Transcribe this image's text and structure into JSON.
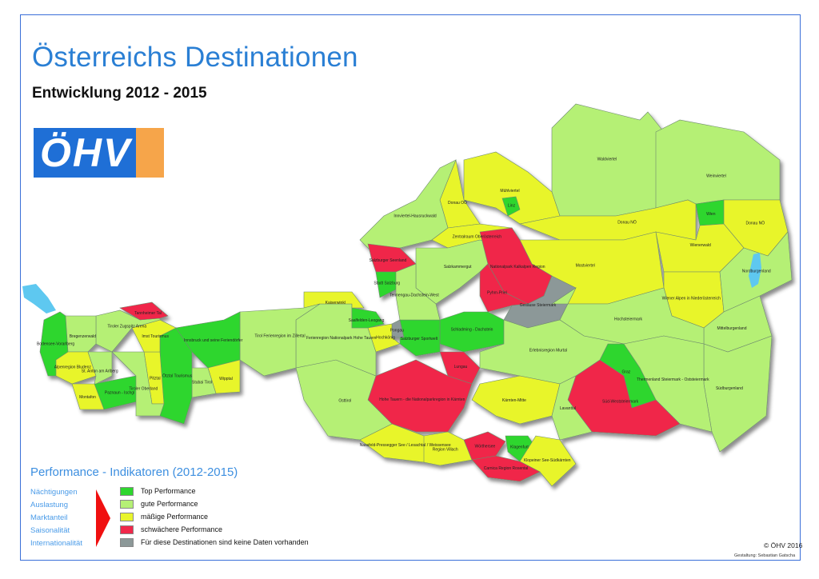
{
  "header": {
    "title": "Österreichs Destinationen",
    "subtitle": "Entwicklung 2012 - 2015",
    "logo_text": "ÖHV"
  },
  "colors": {
    "top": "#2ed62e",
    "gute": "#b5f075",
    "maessig": "#e8f52c",
    "schwach": "#f0284a",
    "keine": "#8c9898",
    "title": "#2a7fd4",
    "lake": "#5ec8f0"
  },
  "legend": {
    "title": "Performance - Indikatoren (2012-2015)",
    "indicators": [
      "Nächtigungen",
      "Auslastung",
      "Marktanteil",
      "Saisonalität",
      "Internationalität"
    ],
    "categories": [
      {
        "key": "top",
        "label": "Top Performance"
      },
      {
        "key": "gute",
        "label": "gute Performance"
      },
      {
        "key": "maessig",
        "label": "mäßige Performance"
      },
      {
        "key": "schwach",
        "label": "schwächere Performance"
      },
      {
        "key": "keine",
        "label": "Für diese Destinationen sind keine Daten vorhanden"
      }
    ]
  },
  "regions": [
    {
      "name": "Waldviertel",
      "perf": "gute"
    },
    {
      "name": "Weinviertel",
      "perf": "gute"
    },
    {
      "name": "Mühlviertel",
      "perf": "maessig"
    },
    {
      "name": "Donau OÖ",
      "perf": "maessig"
    },
    {
      "name": "Linz",
      "perf": "top"
    },
    {
      "name": "Innviertel-Hausruckwald",
      "perf": "gute"
    },
    {
      "name": "Zentralraum Oberösterreich",
      "perf": "maessig"
    },
    {
      "name": "Donau NÖ",
      "perf": "maessig"
    },
    {
      "name": "Wien",
      "perf": "top"
    },
    {
      "name": "Donau NÖ",
      "perf": "maessig"
    },
    {
      "name": "Mostviertel",
      "perf": "maessig"
    },
    {
      "name": "Wienerwald",
      "perf": "maessig"
    },
    {
      "name": "Wiener Alpen in Niederösterreich",
      "perf": "maessig"
    },
    {
      "name": "Nordburgenland",
      "perf": "gute"
    },
    {
      "name": "Mittelburgenland",
      "perf": "gute"
    },
    {
      "name": "Südburgenland",
      "perf": "gute"
    },
    {
      "name": "Salzkammergut",
      "perf": "gute"
    },
    {
      "name": "Nationalpark Kalkalpen Region",
      "perf": "schwach"
    },
    {
      "name": "Pyhrn-Priel",
      "perf": "schwach"
    },
    {
      "name": "Gesäuse Steiermark",
      "perf": "keine"
    },
    {
      "name": "Hochsteiermark",
      "perf": "gute"
    },
    {
      "name": "Thermenland Steiermark - Oststeiermark",
      "perf": "gute"
    },
    {
      "name": "Graz",
      "perf": "top"
    },
    {
      "name": "Süd-Weststeiermark",
      "perf": "schwach"
    },
    {
      "name": "Schladming - Dachstein",
      "perf": "top"
    },
    {
      "name": "Erlebnisregion Murtal",
      "perf": "gute"
    },
    {
      "name": "Lungau",
      "perf": "schwach"
    },
    {
      "name": "Hohe Tauern - die Nationalparkregion in Kärnten",
      "perf": "schwach"
    },
    {
      "name": "Kärnten-Mitte",
      "perf": "maessig"
    },
    {
      "name": "Lavanttal",
      "perf": "gute"
    },
    {
      "name": "Nassfeld-Pressegger See / Lesachtal / Weissensee",
      "perf": "maessig"
    },
    {
      "name": "Region Villach",
      "perf": "maessig"
    },
    {
      "name": "Wörthersee",
      "perf": "schwach"
    },
    {
      "name": "Klagenfurt",
      "perf": "top"
    },
    {
      "name": "Klopeiner See-Südkärnten",
      "perf": "maessig"
    },
    {
      "name": "Carnica Region Rosental",
      "perf": "schwach"
    },
    {
      "name": "Osttirol",
      "perf": "gute"
    },
    {
      "name": "Ferienregion Nationalpark Hohe Tauern",
      "perf": "gute"
    },
    {
      "name": "Salzburger Sportwelt",
      "perf": "top"
    },
    {
      "name": "Salzburger Seenland",
      "perf": "schwach"
    },
    {
      "name": "Stadt Salzburg",
      "perf": "top"
    },
    {
      "name": "Tennengau-Dachstein-West",
      "perf": "gute"
    },
    {
      "name": "Pongau",
      "perf": "keine"
    },
    {
      "name": "Hochkönig",
      "perf": "maessig"
    },
    {
      "name": "Saalfelden-Leogang",
      "perf": "top"
    },
    {
      "name": "Kaiserwinkl",
      "perf": "maessig"
    },
    {
      "name": "Tirol Ferienregion im Zillertal",
      "perf": "gute"
    },
    {
      "name": "Innsbruck und seine Feriendörfer",
      "perf": "top"
    },
    {
      "name": "Wipptal",
      "perf": "maessig"
    },
    {
      "name": "Stubai Tirol",
      "perf": "gute"
    },
    {
      "name": "Ötztal Tourismus",
      "perf": "top"
    },
    {
      "name": "Pitztal",
      "perf": "maessig"
    },
    {
      "name": "Imst Tourismus",
      "perf": "maessig"
    },
    {
      "name": "Paznaun - Ischgl",
      "perf": "top"
    },
    {
      "name": "Tiroler Oberland",
      "perf": "gute"
    },
    {
      "name": "Tiroler Zugspitz Arena",
      "perf": "gute"
    },
    {
      "name": "Tannheimer Tal",
      "perf": "schwach"
    },
    {
      "name": "Bodensee-Vorarlberg",
      "perf": "top"
    },
    {
      "name": "Bregenzerwald",
      "perf": "gute"
    },
    {
      "name": "Alpenregion Bludenz",
      "perf": "maessig"
    },
    {
      "name": "Montafon",
      "perf": "maessig"
    },
    {
      "name": "St. Anton am Arlberg",
      "perf": "gute"
    }
  ],
  "footer": {
    "copyright": "© ÖHV  2016",
    "credit": "Gestaltung: Sebastian Gatscha"
  }
}
